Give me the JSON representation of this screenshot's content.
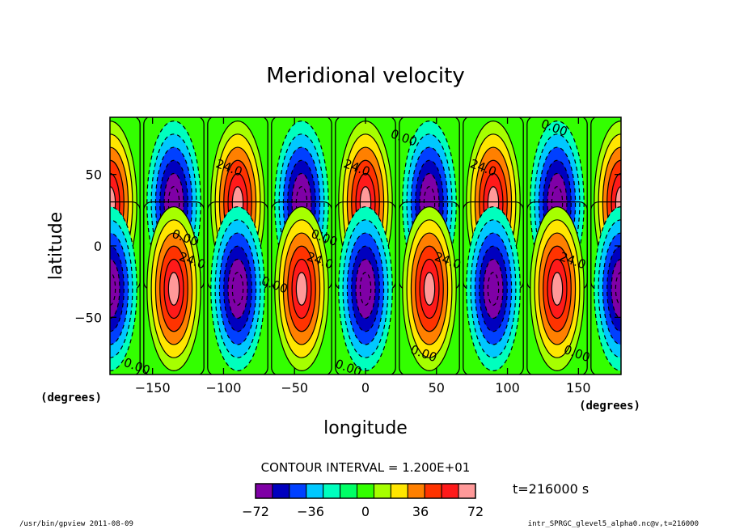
{
  "chart_data": {
    "type": "heatmap",
    "title": "Meridional velocity",
    "xlabel": "longitude",
    "ylabel": "latitude",
    "x_unit": "(degrees)",
    "y_unit": "(degrees)",
    "xlim": [
      -180,
      180
    ],
    "ylim": [
      -90,
      90
    ],
    "xticks": [
      -150,
      -100,
      -50,
      0,
      50,
      100,
      150
    ],
    "yticks": [
      -50,
      0,
      50
    ],
    "zonal_wavenumber": 4,
    "amplitude": 72,
    "field_cells": [
      {
        "hemisphere": "north",
        "lat_center": 30,
        "lon_centers": [
          -180,
          -135,
          -90,
          -45,
          0,
          45,
          90,
          135,
          180
        ],
        "values": [
          72,
          -72,
          72,
          -72,
          72,
          -72,
          72,
          -72,
          72
        ]
      },
      {
        "hemisphere": "south",
        "lat_center": -30,
        "lon_centers": [
          -180,
          -135,
          -90,
          -45,
          0,
          45,
          90,
          135,
          180
        ],
        "values": [
          -72,
          72,
          -72,
          72,
          -72,
          72,
          -72,
          72,
          -72
        ]
      }
    ],
    "contour_interval": "CONTOUR INTERVAL = 1.200E+01",
    "contour_labels": [
      {
        "text": "24.0",
        "lon": -97,
        "lat": 52
      },
      {
        "text": "24.0",
        "lon": -7,
        "lat": 52
      },
      {
        "text": "24.0",
        "lon": 82,
        "lat": 52
      },
      {
        "text": "24.0",
        "lon": -123,
        "lat": -13
      },
      {
        "text": "24.0",
        "lon": -33,
        "lat": -13
      },
      {
        "text": "24.0",
        "lon": 57,
        "lat": -13
      },
      {
        "text": "24.0",
        "lon": 145,
        "lat": -13
      },
      {
        "text": "0.00",
        "lon": -128,
        "lat": 3
      },
      {
        "text": "0.00",
        "lon": -30,
        "lat": 3
      },
      {
        "text": "0.00",
        "lon": 26,
        "lat": 73
      },
      {
        "text": "0.00",
        "lon": 132,
        "lat": 80
      },
      {
        "text": "0.00",
        "lon": -65,
        "lat": -30
      },
      {
        "text": "0.00",
        "lon": -162,
        "lat": -87
      },
      {
        "text": "0.00",
        "lon": -13,
        "lat": -88
      },
      {
        "text": "0.00",
        "lon": 40,
        "lat": -78
      },
      {
        "text": "0.00",
        "lon": 148,
        "lat": -78
      }
    ],
    "colorbar": {
      "ticks": [
        "−72",
        "−36",
        "0",
        "36",
        "72"
      ],
      "colors": [
        "#7f00a6",
        "#0000bf",
        "#0040ff",
        "#00c8ff",
        "#00ffbe",
        "#00ff66",
        "#33ff00",
        "#a6ff00",
        "#ffe600",
        "#ff8000",
        "#ff3300",
        "#ff1a1a",
        "#ff9999"
      ]
    }
  },
  "time_label": "t=216000 s",
  "footer_left": "/usr/bin/gpview  2011-08-09",
  "footer_right": "intr_SPRGC_glevel5_alpha0.nc@v,t=216000"
}
